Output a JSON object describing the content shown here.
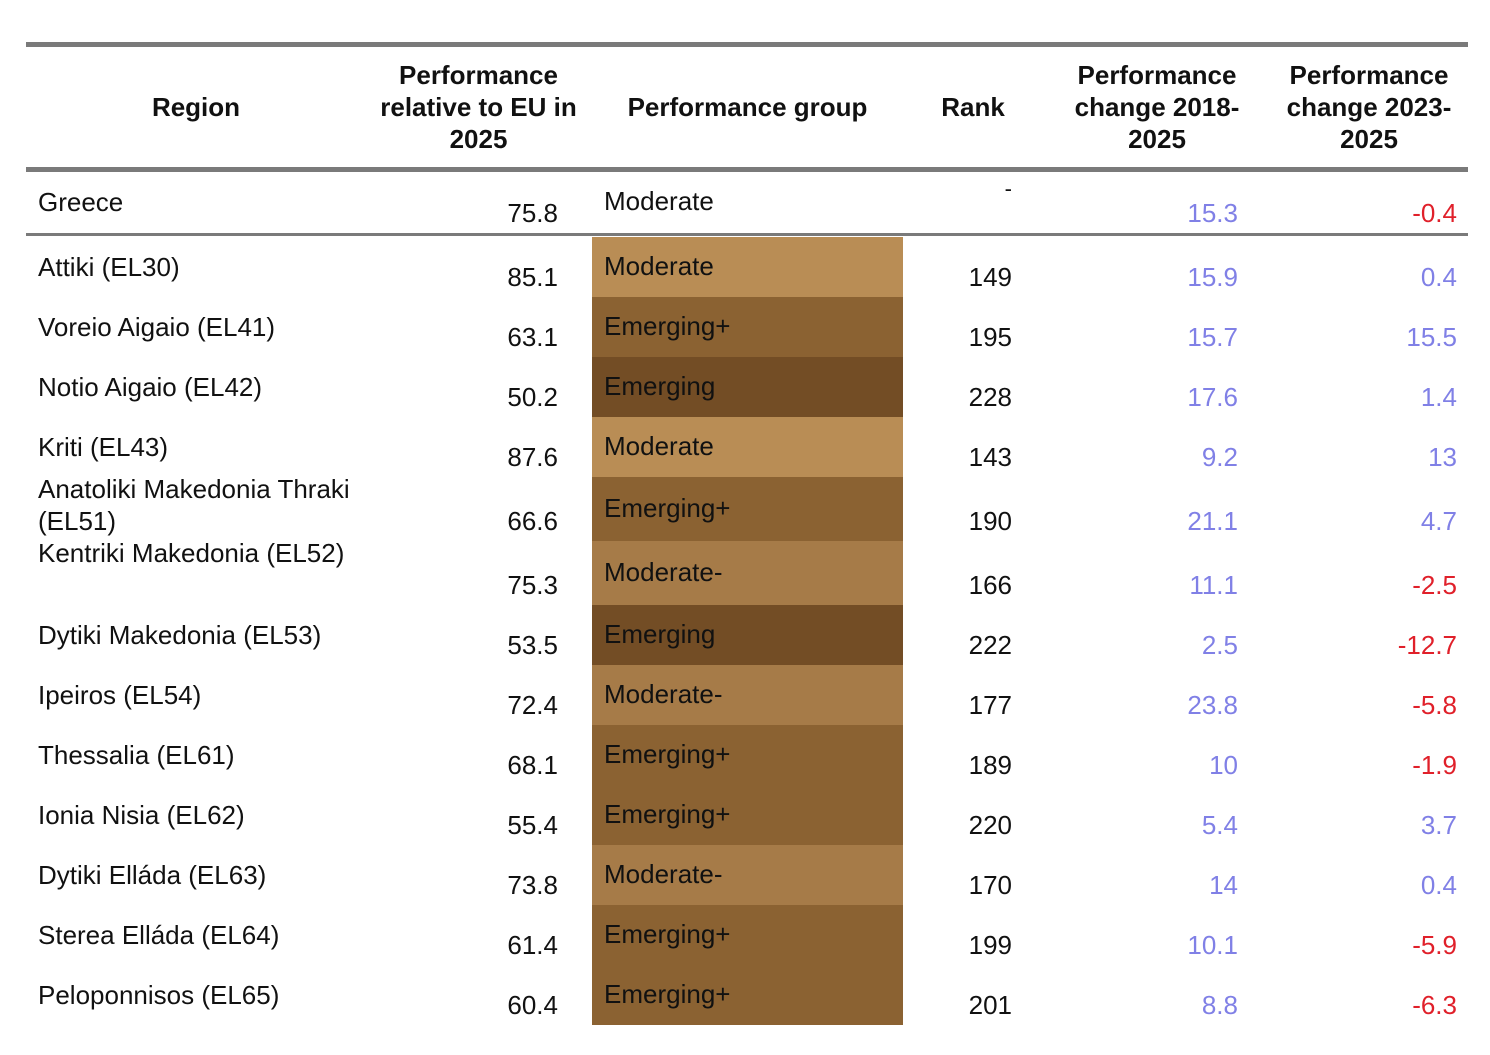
{
  "headers": {
    "region": "Region",
    "perf_rel": "Performance relative to EU in 2025",
    "group": "Performance group",
    "rank": "Rank",
    "change_2018": "Performance change 2018-2025",
    "change_2023": "Performance change 2023-2025"
  },
  "colors": {
    "Moderate": "#b98d55",
    "Moderate-": "#a67b48",
    "Emerging+": "#8b6232",
    "Emerging": "#734d25",
    "positive_change": "#8080e6",
    "negative_change": "#e0202a"
  },
  "country": {
    "region": "Greece",
    "perf": "75.8",
    "group": "Moderate",
    "rank": "-",
    "ch1": "15.3",
    "ch2": "-0.4"
  },
  "rows": [
    {
      "region": "Attiki (EL30)",
      "perf": "85.1",
      "group": "Moderate",
      "rank": "149",
      "ch1": "15.9",
      "ch2": "0.4"
    },
    {
      "region": "Voreio Aigaio (EL41)",
      "perf": "63.1",
      "group": "Emerging+",
      "rank": "195",
      "ch1": "15.7",
      "ch2": "15.5"
    },
    {
      "region": "Notio Aigaio (EL42)",
      "perf": "50.2",
      "group": "Emerging",
      "rank": "228",
      "ch1": "17.6",
      "ch2": "1.4"
    },
    {
      "region": "Kriti (EL43)",
      "perf": "87.6",
      "group": "Moderate",
      "rank": "143",
      "ch1": "9.2",
      "ch2": "13"
    },
    {
      "region": "Anatoliki Makedonia Thraki (EL51)",
      "perf": "66.6",
      "group": "Emerging+",
      "rank": "190",
      "ch1": "21.1",
      "ch2": "4.7"
    },
    {
      "region": "Kentriki Makedonia (EL52)",
      "perf": "75.3",
      "group": "Moderate-",
      "rank": "166",
      "ch1": "11.1",
      "ch2": "-2.5"
    },
    {
      "region": "Dytiki Makedonia (EL53)",
      "perf": "53.5",
      "group": "Emerging",
      "rank": "222",
      "ch1": "2.5",
      "ch2": "-12.7"
    },
    {
      "region": "Ipeiros (EL54)",
      "perf": "72.4",
      "group": "Moderate-",
      "rank": "177",
      "ch1": "23.8",
      "ch2": "-5.8"
    },
    {
      "region": "Thessalia (EL61)",
      "perf": "68.1",
      "group": "Emerging+",
      "rank": "189",
      "ch1": "10",
      "ch2": "-1.9"
    },
    {
      "region": "Ionia Nisia (EL62)",
      "perf": "55.4",
      "group": "Emerging+",
      "rank": "220",
      "ch1": "5.4",
      "ch2": "3.7"
    },
    {
      "region": "Dytiki Elláda (EL63)",
      "perf": "73.8",
      "group": "Moderate-",
      "rank": "170",
      "ch1": "14",
      "ch2": "0.4"
    },
    {
      "region": "Sterea Elláda (EL64)",
      "perf": "61.4",
      "group": "Emerging+",
      "rank": "199",
      "ch1": "10.1",
      "ch2": "-5.9"
    },
    {
      "region": "Peloponnisos (EL65)",
      "perf": "60.4",
      "group": "Emerging+",
      "rank": "201",
      "ch1": "8.8",
      "ch2": "-6.3"
    }
  ]
}
